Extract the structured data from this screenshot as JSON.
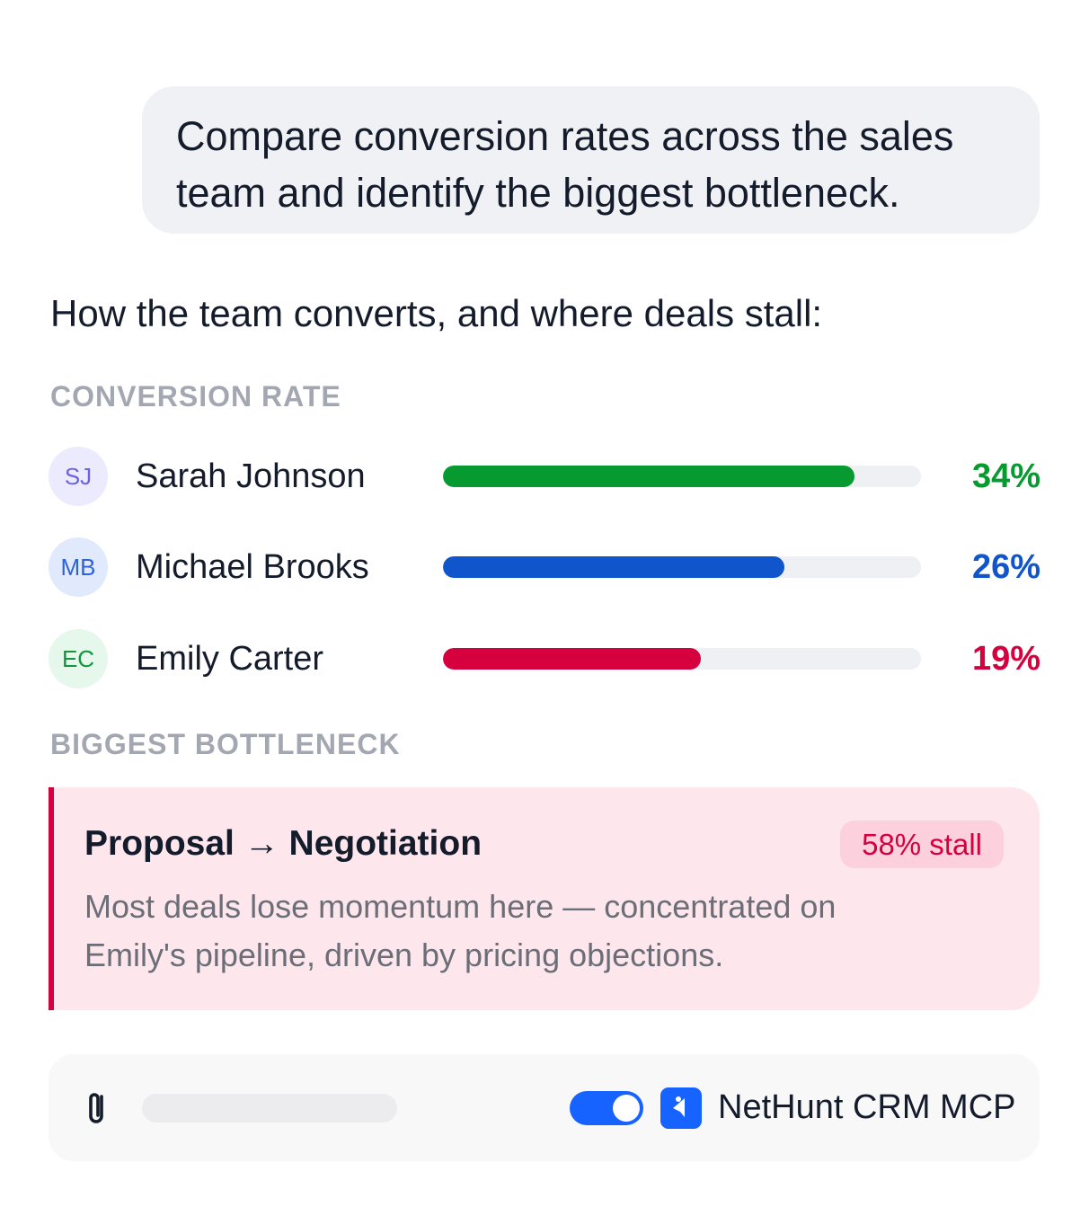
{
  "user_message": {
    "line1": "Compare conversion rates across the sales",
    "line2": "team and identify the biggest bottleneck."
  },
  "response": {
    "intro": "How the team converts, and where deals stall:",
    "conversion_label": "CONVERSION RATE",
    "bottleneck_label": "BIGGEST BOTTLENECK"
  },
  "reps": [
    {
      "initials": "SJ",
      "name": "Sarah Johnson",
      "value_label": "34%",
      "fill_percent": 86,
      "bar_color": "#079a30",
      "text_color": "#079a30",
      "avatar_bg": "#eceafd",
      "avatar_color": "#6c63e0"
    },
    {
      "initials": "MB",
      "name": "Michael Brooks",
      "value_label": "26%",
      "fill_percent": 71.4,
      "bar_color": "#1155cc",
      "text_color": "#1155cc",
      "avatar_bg": "#e1eafd",
      "avatar_color": "#2e63d8"
    },
    {
      "initials": "EC",
      "name": "Emily Carter",
      "value_label": "19%",
      "fill_percent": 54,
      "bar_color": "#d6003f",
      "text_color": "#d6003f",
      "avatar_bg": "#e6f7ec",
      "avatar_color": "#11963d"
    }
  ],
  "bottleneck": {
    "stage": "Proposal → Negotiation",
    "badge": "58% stall",
    "desc_line1": "Most deals lose momentum here — concentrated on",
    "desc_line2": "Emily's pipeline, driven by pricing objections."
  },
  "composer": {
    "attach_icon": "paperclip-icon",
    "toggle_on": true,
    "connector_icon": "nethunt-logo-icon",
    "connector_name": "NetHunt CRM MCP"
  },
  "colors": {
    "accent": "#1763ff",
    "alert": "#d6003f",
    "alert_bg": "#fde7ed"
  }
}
